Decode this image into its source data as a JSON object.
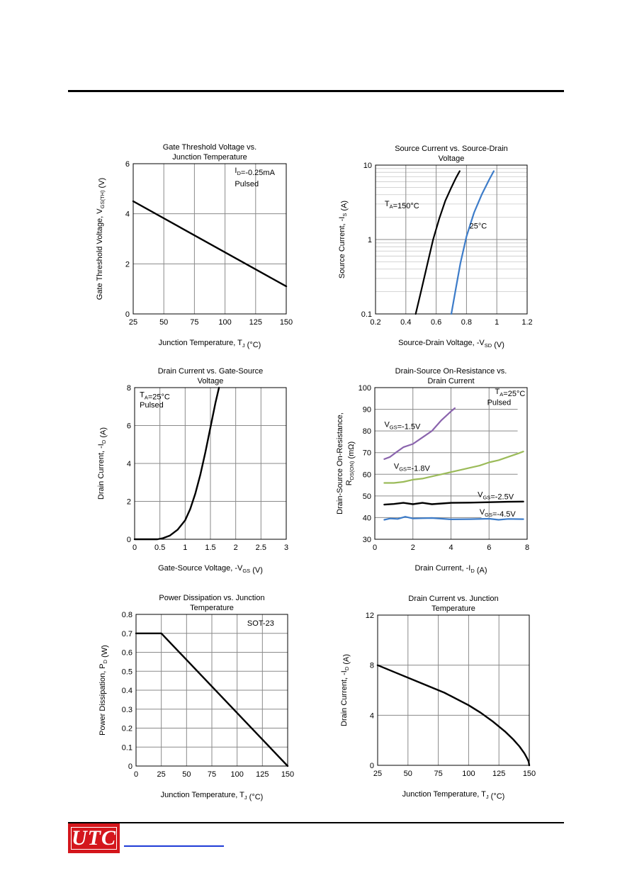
{
  "footer": {
    "logo_text": "UTC"
  },
  "chart_data": [
    {
      "id": "c1",
      "type": "line",
      "title": [
        "Gate Threshold  Voltage vs.",
        "Junction Temperature"
      ],
      "xlabel": [
        [
          "Junction Temperature, T"
        ],
        [
          "J",
          "sub"
        ],
        [
          " (°C)"
        ]
      ],
      "ylabel": [
        [
          "Gate Threshold  Voltage, V"
        ],
        [
          "GS(TH)",
          "sub"
        ],
        [
          " (V)"
        ]
      ],
      "x_ticks": [
        25,
        50,
        75,
        100,
        125,
        150
      ],
      "y_ticks": [
        0,
        2,
        4,
        6
      ],
      "xlim": [
        25,
        150
      ],
      "ylim": [
        0,
        6
      ],
      "yscale": "linear",
      "grid": true,
      "annotations": [
        {
          "x": 108,
          "y": 5.63,
          "parts": [
            [
              "I"
            ],
            [
              "D",
              "sub"
            ],
            [
              "=-0.25mA"
            ]
          ]
        },
        {
          "x": 108,
          "y": 5.1,
          "parts": [
            [
              "Pulsed"
            ]
          ]
        }
      ],
      "series": [
        {
          "color": "#000000",
          "x": [
            25,
            150
          ],
          "y": [
            4.5,
            1.1
          ]
        }
      ]
    },
    {
      "id": "c2",
      "type": "line",
      "title": [
        "Source Current vs. Source-Drain",
        "Voltage"
      ],
      "xlabel": [
        [
          "Source-Drain Voltage, -V"
        ],
        [
          "SD",
          "sub"
        ],
        [
          " (V)"
        ]
      ],
      "ylabel": [
        [
          "Source Current, -I"
        ],
        [
          "S",
          "sub"
        ],
        [
          " (A)"
        ]
      ],
      "x_ticks": [
        0.2,
        0.4,
        0.6,
        0.8,
        1,
        1.2
      ],
      "y_ticks": [
        0.1,
        1,
        10
      ],
      "xlim": [
        0.2,
        1.2
      ],
      "ylim": [
        0.1,
        10
      ],
      "yscale": "log",
      "grid": true,
      "annotations": [
        {
          "x": 0.26,
          "y": 2.8,
          "parts": [
            [
              "T"
            ],
            [
              "A",
              "sub"
            ],
            [
              "=150°C"
            ]
          ]
        },
        {
          "x": 0.82,
          "y": 1.4,
          "parts": [
            [
              "25°C"
            ]
          ]
        }
      ],
      "series": [
        {
          "name": "T=150°C",
          "color": "#000000",
          "x": [
            0.465,
            0.5,
            0.54,
            0.58,
            0.62,
            0.66,
            0.7,
            0.73,
            0.755
          ],
          "y": [
            0.1,
            0.2,
            0.45,
            1.0,
            1.9,
            3.3,
            5.0,
            6.7,
            8.3
          ]
        },
        {
          "name": "25°C",
          "color": "#3d7cc9",
          "x": [
            0.7,
            0.73,
            0.76,
            0.8,
            0.85,
            0.9,
            0.95,
            0.98
          ],
          "y": [
            0.1,
            0.22,
            0.48,
            1.1,
            2.3,
            4.0,
            6.4,
            8.3
          ]
        }
      ]
    },
    {
      "id": "c3",
      "type": "line",
      "title": [
        "Drain Current vs. Gate-Source",
        "Voltage"
      ],
      "xlabel": [
        [
          "Gate-Source Voltage, -V"
        ],
        [
          "GS",
          "sub"
        ],
        [
          " (V)"
        ]
      ],
      "ylabel": [
        [
          "Drain Current, -I"
        ],
        [
          "D",
          "sub"
        ],
        [
          " (A)"
        ]
      ],
      "x_ticks": [
        0,
        0.5,
        1,
        1.5,
        2,
        2.5,
        3
      ],
      "y_ticks": [
        0,
        2,
        4,
        6,
        8
      ],
      "xlim": [
        0,
        3
      ],
      "ylim": [
        0,
        8
      ],
      "yscale": "linear",
      "grid": true,
      "annotations": [
        {
          "x": 0.1,
          "y": 7.5,
          "parts": [
            [
              "T"
            ],
            [
              "A",
              "sub"
            ],
            [
              "=25°C"
            ]
          ]
        },
        {
          "x": 0.1,
          "y": 6.95,
          "parts": [
            [
              "Pulsed"
            ]
          ]
        }
      ],
      "series": [
        {
          "color": "#000000",
          "x": [
            0,
            0.1,
            0.3,
            0.45,
            0.55,
            0.7,
            0.85,
            1.0,
            1.1,
            1.2,
            1.3,
            1.4,
            1.5,
            1.6,
            1.67
          ],
          "y": [
            0,
            0,
            0,
            0,
            0.05,
            0.2,
            0.5,
            1.0,
            1.6,
            2.4,
            3.4,
            4.6,
            5.9,
            7.2,
            8.0
          ]
        }
      ]
    },
    {
      "id": "c4",
      "type": "line",
      "title": [
        "Drain-Source On-Resistance vs.",
        "Drain Current"
      ],
      "xlabel": [
        [
          "Drain Current, -I"
        ],
        [
          "D",
          "sub"
        ],
        [
          " (A)"
        ]
      ],
      "ylabel": [
        [
          "Drain-Source On-Resistance,"
        ]
      ],
      "ylabel2": [
        [
          "R"
        ],
        [
          "DS(ON)",
          "sub"
        ],
        [
          " (mΩ)"
        ]
      ],
      "x_ticks": [
        0,
        2,
        4,
        6,
        8
      ],
      "y_ticks": [
        30,
        40,
        50,
        60,
        70,
        80,
        90,
        100
      ],
      "xlim": [
        0,
        8
      ],
      "ylim": [
        30,
        100
      ],
      "yscale": "linear",
      "grid": true,
      "grid_ends": [
        5.6,
        5.6,
        5.6,
        7.5,
        7.5,
        7.5,
        7.5,
        8
      ],
      "annotations": [
        {
          "x": 7.9,
          "y": 97,
          "anchor": "end",
          "parts": [
            [
              "T"
            ],
            [
              "A",
              "sub"
            ],
            [
              "=25°C"
            ]
          ]
        },
        {
          "x": 5.9,
          "y": 92,
          "parts": [
            [
              "Pulsed"
            ]
          ]
        },
        {
          "x": 0.5,
          "y": 81.8,
          "parts": [
            [
              "V"
            ],
            [
              "GS",
              "sub"
            ],
            [
              "=-1.5V"
            ]
          ]
        },
        {
          "x": 1.0,
          "y": 62.5,
          "parts": [
            [
              "V"
            ],
            [
              "GS",
              "sub"
            ],
            [
              "=-1.8V"
            ]
          ]
        },
        {
          "x": 5.4,
          "y": 49.5,
          "parts": [
            [
              "V"
            ],
            [
              "GS",
              "sub"
            ],
            [
              "=-2.5V"
            ]
          ]
        },
        {
          "x": 5.5,
          "y": 41.5,
          "parts": [
            [
              "V"
            ],
            [
              "GS",
              "sub"
            ],
            [
              "=-4.5V"
            ]
          ]
        }
      ],
      "series": [
        {
          "name": "VGS=-1.5V",
          "color": "#8a64ad",
          "x": [
            0.5,
            0.8,
            1.1,
            1.5,
            2.0,
            2.5,
            3.0,
            3.5,
            4.0,
            4.2
          ],
          "y": [
            67,
            68,
            70,
            72.5,
            74,
            77,
            80,
            85,
            89,
            90.5
          ]
        },
        {
          "name": "VGS=-1.8V",
          "color": "#9bbb59",
          "x": [
            0.5,
            1.0,
            1.5,
            2.0,
            2.5,
            3.0,
            3.5,
            4.0,
            4.5,
            5.0,
            5.5,
            6.0,
            6.5,
            7.0,
            7.5,
            7.8
          ],
          "y": [
            56,
            56,
            56.5,
            57.5,
            58,
            59,
            60,
            61,
            62,
            63,
            64,
            65.5,
            66.5,
            68,
            69.5,
            70.5
          ]
        },
        {
          "name": "VGS=-2.5V",
          "color": "#000000",
          "x": [
            0.5,
            1.0,
            1.5,
            2.0,
            2.5,
            3.0,
            4.0,
            5.0,
            6.0,
            7.0,
            7.8
          ],
          "y": [
            46,
            46.3,
            46.8,
            46.2,
            46.8,
            46.2,
            46.8,
            46.9,
            47.1,
            47.3,
            47.4
          ]
        },
        {
          "name": "VGS=-4.5V",
          "color": "#3d7cc9",
          "x": [
            0.5,
            0.8,
            1.2,
            1.6,
            2.0,
            2.5,
            3.0,
            4.0,
            5.0,
            6.0,
            6.5,
            7.0,
            7.8
          ],
          "y": [
            39,
            39.6,
            39.4,
            40.4,
            39.6,
            39.7,
            39.8,
            39.2,
            39.3,
            39.5,
            39.0,
            39.4,
            39.3
          ]
        }
      ]
    },
    {
      "id": "c5",
      "type": "line",
      "title": [
        "Power Dissipation vs. Junction",
        "Temperature"
      ],
      "xlabel": [
        [
          "Junction Temperature, T"
        ],
        [
          "J",
          "sub"
        ],
        [
          " (°C)"
        ]
      ],
      "ylabel": [
        [
          "Power Dissipation, P"
        ],
        [
          "D",
          "sub"
        ],
        [
          " (W)"
        ]
      ],
      "x_ticks": [
        0,
        25,
        50,
        75,
        100,
        125,
        150
      ],
      "y_ticks": [
        0,
        0.1,
        0.2,
        0.3,
        0.4,
        0.5,
        0.6,
        0.7,
        0.8
      ],
      "xlim": [
        0,
        150
      ],
      "ylim": [
        0,
        0.8
      ],
      "yscale": "linear",
      "grid": true,
      "annotations": [
        {
          "x": 110,
          "y": 0.74,
          "parts": [
            [
              "SOT-23"
            ]
          ]
        }
      ],
      "series": [
        {
          "color": "#000000",
          "x": [
            0,
            25,
            150
          ],
          "y": [
            0.7,
            0.7,
            0
          ]
        }
      ]
    },
    {
      "id": "c6",
      "type": "line",
      "title": [
        "Drain Current vs. Junction",
        "Temperature"
      ],
      "xlabel": [
        [
          "Junction Temperature, T"
        ],
        [
          "J",
          "sub"
        ],
        [
          " (°C)"
        ]
      ],
      "ylabel": [
        [
          "Drain Current, -I"
        ],
        [
          "D",
          "sub"
        ],
        [
          " (A)"
        ]
      ],
      "x_ticks": [
        25,
        50,
        75,
        100,
        125,
        150
      ],
      "y_ticks": [
        0,
        4,
        8,
        12
      ],
      "xlim": [
        25,
        150
      ],
      "ylim": [
        0,
        12
      ],
      "yscale": "linear",
      "grid": true,
      "annotations": [],
      "series": [
        {
          "color": "#000000",
          "x": [
            25,
            40,
            60,
            80,
            100,
            110,
            120,
            130,
            137,
            142,
            146,
            148,
            149.5,
            150
          ],
          "y": [
            8.0,
            7.4,
            6.6,
            5.8,
            4.8,
            4.2,
            3.5,
            2.7,
            2.05,
            1.5,
            0.95,
            0.6,
            0.3,
            0
          ]
        }
      ]
    }
  ]
}
